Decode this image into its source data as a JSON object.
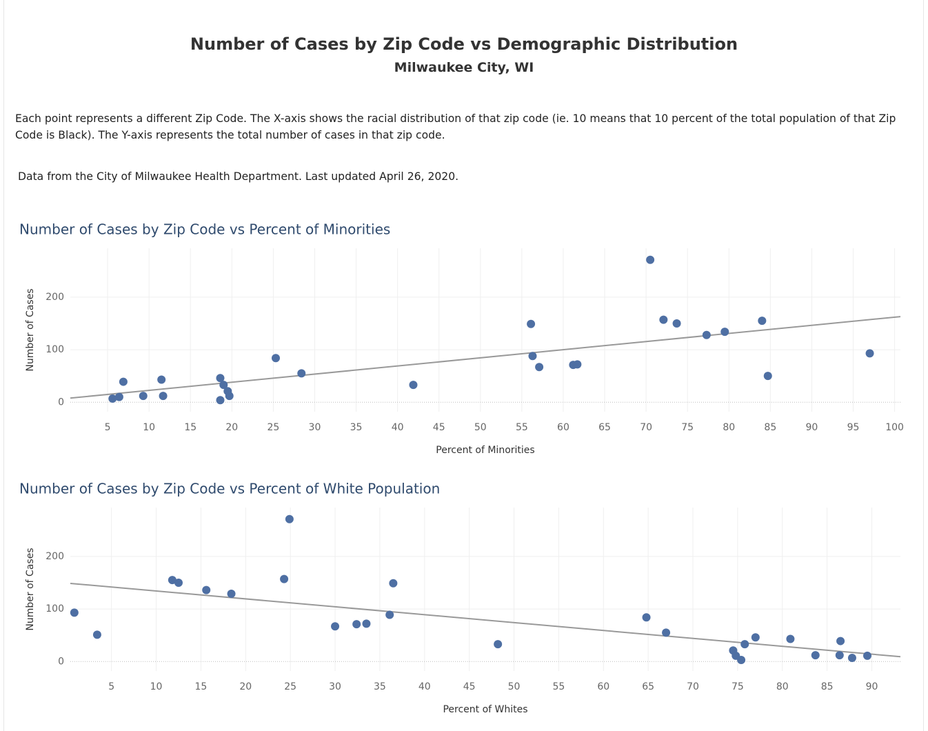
{
  "header": {
    "title": "Number of Cases by Zip Code vs Demographic Distribution",
    "subtitle": "Milwaukee City, WI",
    "description": "Each point represents a different Zip Code.  The X-axis shows the racial distribution of that zip code (ie. 10 means that 10 percent of the total population of that Zip Code is Black).  The Y-axis represents the total number of cases in that zip code.",
    "source": "Data from the City of Milwaukee Health Department.  Last updated April 26, 2020."
  },
  "chart_data": [
    {
      "type": "scatter",
      "title": "Number of Cases by Zip Code vs Percent of Minorities",
      "x_label": "Percent of Minorities",
      "y_label": "Number of Cases",
      "color": "#4e6fa3",
      "grid": true,
      "x": [
        5.6,
        6.4,
        6.9,
        9.3,
        11.5,
        11.7,
        18.6,
        18.6,
        19.0,
        19.5,
        19.7,
        25.3,
        28.4,
        41.9,
        56.1,
        56.3,
        57.1,
        61.2,
        61.7,
        70.5,
        72.1,
        73.7,
        77.3,
        79.5,
        84.0,
        84.7,
        97.0
      ],
      "values": [
        7,
        10,
        39,
        12,
        43,
        12,
        46,
        4,
        33,
        21,
        12,
        84,
        55,
        33,
        149,
        88,
        67,
        71,
        72,
        271,
        157,
        150,
        128,
        134,
        155,
        50,
        93
      ],
      "trend_line": {
        "color": "#999999",
        "x": [
          0.5,
          100.7
        ],
        "values": [
          7.9,
          163
        ]
      },
      "xlim": [
        0.5,
        100.7
      ],
      "xticks": [
        5,
        10,
        15,
        20,
        25,
        30,
        35,
        40,
        45,
        50,
        55,
        60,
        65,
        70,
        75,
        80,
        85,
        90,
        95,
        100
      ],
      "ylim": [
        -18,
        293
      ],
      "yticks": [
        0,
        100,
        200
      ]
    },
    {
      "type": "scatter",
      "title": "Number of Cases by Zip Code vs Percent of  White Population",
      "x_label": "Percent of Whites",
      "y_label": "Number of Cases",
      "color": "#4e6fa3",
      "grid": true,
      "x": [
        0.85,
        3.4,
        11.8,
        12.5,
        15.6,
        18.4,
        24.3,
        24.9,
        30.0,
        32.4,
        33.5,
        36.1,
        36.5,
        48.2,
        64.8,
        67.0,
        74.5,
        74.8,
        75.4,
        75.8,
        77.0,
        80.9,
        83.7,
        86.4,
        86.5,
        87.8,
        89.5
      ],
      "values": [
        93,
        51,
        155,
        150,
        136,
        129,
        157,
        271,
        67,
        71,
        72,
        89,
        149,
        33,
        84,
        55,
        21,
        11,
        3,
        33,
        46,
        43,
        12,
        12,
        39,
        7,
        11
      ],
      "trend_line": {
        "color": "#999999",
        "x": [
          0.4,
          93.2
        ],
        "values": [
          148.7,
          9.2
        ]
      },
      "xlim": [
        0.4,
        93.2
      ],
      "xticks": [
        5,
        10,
        15,
        20,
        25,
        30,
        35,
        40,
        45,
        50,
        55,
        60,
        65,
        70,
        75,
        80,
        85,
        90
      ],
      "ylim": [
        -18,
        293
      ],
      "yticks": [
        0,
        100,
        200
      ]
    }
  ]
}
